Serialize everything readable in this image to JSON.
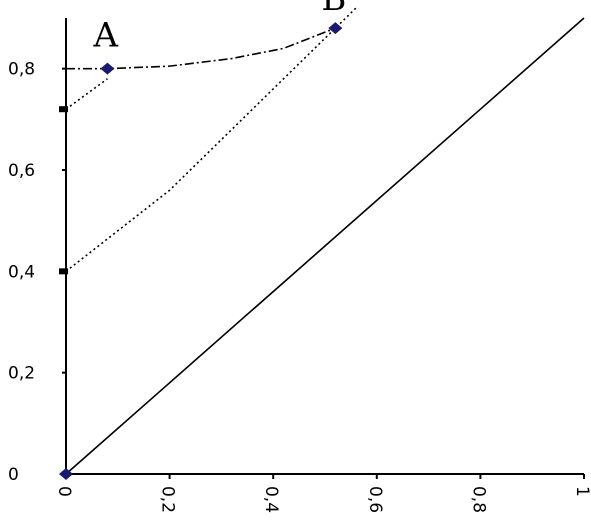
{
  "chart_data": {
    "type": "line",
    "title": "",
    "xlabel": "",
    "ylabel": "",
    "xlim": [
      0,
      1
    ],
    "ylim": [
      0,
      0.9
    ],
    "grid": false,
    "x_ticks": [
      {
        "value": 0,
        "label": "0"
      },
      {
        "value": 0.2,
        "label": "0,2"
      },
      {
        "value": 0.4,
        "label": "0,4"
      },
      {
        "value": 0.6,
        "label": "0,6"
      },
      {
        "value": 0.8,
        "label": "0,8"
      },
      {
        "value": 1.0,
        "label": "1"
      }
    ],
    "y_ticks": [
      {
        "value": 0,
        "label": "0"
      },
      {
        "value": 0.2,
        "label": "0,2"
      },
      {
        "value": 0.4,
        "label": "0,4"
      },
      {
        "value": 0.6,
        "label": "0,6"
      },
      {
        "value": 0.8,
        "label": "0,8"
      }
    ],
    "series": [
      {
        "style": "solid",
        "x": [
          0,
          0.2,
          0.4,
          0.6,
          0.8,
          1.0
        ],
        "y": [
          0,
          0.18,
          0.36,
          0.54,
          0.72,
          0.9
        ]
      },
      {
        "style": "dotted",
        "x": [
          0,
          0.1,
          0.2,
          0.3,
          0.4,
          0.5,
          0.52,
          0.56
        ],
        "y": [
          0.4,
          0.48,
          0.56,
          0.66,
          0.76,
          0.86,
          0.88,
          0.92
        ]
      },
      {
        "style": "dotted",
        "x": [
          0,
          0.08
        ],
        "y": [
          0.72,
          0.78
        ]
      },
      {
        "style": "dashdot",
        "x": [
          0,
          0.08,
          0.2,
          0.32,
          0.42,
          0.52
        ],
        "y": [
          0.8,
          0.8,
          0.805,
          0.82,
          0.84,
          0.88
        ]
      }
    ],
    "points": [
      {
        "label": "A",
        "x": 0.08,
        "y": 0.8
      },
      {
        "label": "B",
        "x": 0.52,
        "y": 0.88
      },
      {
        "label": "",
        "x": 0,
        "y": 0
      }
    ],
    "axis_marks": [
      {
        "axis": "y",
        "value": 0.72
      },
      {
        "axis": "y",
        "value": 0.4
      }
    ],
    "colors": {
      "line": "#000000",
      "marker": "#1a1a6e"
    }
  }
}
